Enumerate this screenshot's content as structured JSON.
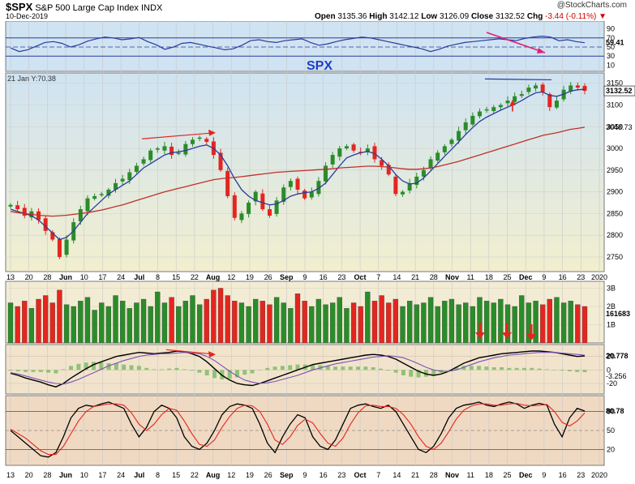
{
  "header": {
    "symbol": "$SPX",
    "name": "S&P 500 Large Cap Index",
    "exchange": "INDX",
    "date": "10-Dec-2019",
    "brand": "@StockCharts.com",
    "open_label": "Open",
    "open": "3135.36",
    "high_label": "High",
    "high": "3142.12",
    "low_label": "Low",
    "low": "3126.09",
    "close_label": "Close",
    "close": "3132.52",
    "chg_label": "Chg",
    "chg": "-3.44 (-0.11%)",
    "chg_arrow": "▼"
  },
  "colors": {
    "up": "#2a8c2a",
    "down": "#e3261f",
    "price_bg_top": "#cfe3f2",
    "price_bg_bottom": "#f2efcf",
    "sma_short": "#2a3c9c",
    "sma_long": "#c0302a",
    "annot": "#e0207a",
    "spx_text": "#1f3ec8"
  },
  "chart_data": [
    {
      "type": "line",
      "panel": "rsi",
      "yticks": [
        "90",
        "70",
        "50",
        "30",
        "10"
      ],
      "reference_lines": [
        70,
        30
      ],
      "last_value_label": "59.41",
      "values": [
        48,
        40,
        44,
        52,
        60,
        62,
        58,
        50,
        55,
        63,
        68,
        72,
        70,
        66,
        68,
        71,
        62,
        55,
        45,
        50,
        58,
        60,
        56,
        52,
        48,
        44,
        46,
        54,
        64,
        66,
        62,
        60,
        64,
        66,
        68,
        60,
        54,
        57,
        62,
        66,
        69,
        72,
        70,
        66,
        62,
        58,
        54,
        50,
        46,
        40,
        45,
        52,
        56,
        60,
        62,
        64,
        66,
        68,
        66,
        64,
        69,
        72,
        74,
        72,
        64,
        66,
        62,
        59.41
      ]
    },
    {
      "type": "candlestick",
      "panel": "price",
      "title_annotation": "SPX",
      "info_label": "21 Jan Y:70.38",
      "ylim": [
        2720,
        3170
      ],
      "yticks": [
        "3150",
        "3100",
        "3050",
        "3000",
        "2950",
        "2900",
        "2850",
        "2800",
        "2750"
      ],
      "last_close_label": "3132.52",
      "sma_label": "3048.73",
      "closes": [
        2870,
        2860,
        2845,
        2855,
        2835,
        2810,
        2790,
        2750,
        2790,
        2830,
        2860,
        2885,
        2890,
        2895,
        2905,
        2920,
        2930,
        2945,
        2960,
        2975,
        2995,
        3000,
        3005,
        2985,
        2990,
        3010,
        3020,
        3025,
        3015,
        2985,
        2950,
        2890,
        2840,
        2850,
        2875,
        2900,
        2860,
        2845,
        2880,
        2910,
        2925,
        2905,
        2885,
        2900,
        2925,
        2960,
        2985,
        3000,
        3005,
        2995,
        2990,
        3000,
        2975,
        2960,
        2940,
        2895,
        2900,
        2920,
        2935,
        2950,
        2975,
        2990,
        3005,
        3020,
        3040,
        3060,
        3075,
        3085,
        3090,
        3095,
        3100,
        3110,
        3120,
        3125,
        3140,
        3145,
        3130,
        3095,
        3110,
        3135,
        3145,
        3140,
        3132.52
      ],
      "series": [
        {
          "name": "SMA short",
          "values": [
            2860,
            2855,
            2850,
            2845,
            2835,
            2820,
            2805,
            2790,
            2795,
            2810,
            2830,
            2850,
            2865,
            2880,
            2895,
            2905,
            2915,
            2925,
            2940,
            2955,
            2965,
            2975,
            2985,
            2990,
            2992,
            2995,
            3000,
            3005,
            3008,
            3000,
            2985,
            2960,
            2930,
            2905,
            2890,
            2880,
            2875,
            2870,
            2872,
            2880,
            2890,
            2895,
            2898,
            2900,
            2908,
            2920,
            2940,
            2960,
            2978,
            2985,
            2990,
            2993,
            2988,
            2975,
            2960,
            2940,
            2925,
            2918,
            2920,
            2932,
            2948,
            2965,
            2982,
            2998,
            3015,
            3032,
            3048,
            3062,
            3072,
            3080,
            3088,
            3095,
            3102,
            3110,
            3120,
            3128,
            3130,
            3122,
            3120,
            3125,
            3132,
            3135,
            3136
          ]
        },
        {
          "name": "SMA long",
          "values": [
            2855,
            2852,
            2850,
            2848,
            2846,
            2845,
            2844,
            2845,
            2846,
            2848,
            2850,
            2852,
            2855,
            2858,
            2862,
            2866,
            2870,
            2875,
            2880,
            2885,
            2890,
            2895,
            2900,
            2904,
            2908,
            2912,
            2916,
            2920,
            2924,
            2928,
            2930,
            2932,
            2933,
            2935,
            2937,
            2939,
            2941,
            2943,
            2945,
            2946,
            2947,
            2948,
            2949,
            2950,
            2951,
            2952,
            2953,
            2955,
            2956,
            2957,
            2958,
            2959,
            2959,
            2958,
            2957,
            2955,
            2953,
            2952,
            2952,
            2953,
            2955,
            2958,
            2962,
            2966,
            2970,
            2975,
            2980,
            2985,
            2990,
            2995,
            3000,
            3005,
            3010,
            3015,
            3020,
            3025,
            3030,
            3033,
            3036,
            3040,
            3044,
            3046,
            3048.73
          ]
        }
      ]
    },
    {
      "type": "bar",
      "panel": "volume",
      "yticks": [
        "3B",
        "2B",
        "1B"
      ],
      "last_value_label": "161683",
      "values": [
        2.2,
        2.0,
        2.3,
        1.9,
        2.4,
        2.6,
        2.2,
        2.9,
        2.1,
        2.0,
        2.3,
        2.5,
        1.8,
        2.2,
        2.0,
        2.6,
        2.3,
        1.9,
        2.2,
        2.4,
        2.0,
        2.8,
        2.2,
        2.5,
        2.0,
        2.3,
        2.6,
        2.1,
        2.4,
        2.9,
        3.0,
        2.6,
        2.3,
        2.2,
        2.0,
        2.4,
        2.3,
        2.1,
        2.5,
        2.2,
        1.9,
        2.7,
        2.3,
        2.0,
        2.4,
        2.1,
        2.2,
        2.5,
        1.9,
        2.2,
        2.0,
        2.8,
        2.3,
        2.6,
        2.2,
        2.4,
        2.0,
        2.3,
        2.1,
        2.2,
        2.5,
        2.0,
        2.3,
        2.4,
        2.1,
        2.2,
        2.0,
        2.5,
        2.3,
        2.2,
        2.4,
        2.1,
        2.0,
        2.6,
        2.2,
        2.3,
        2.1,
        2.4,
        2.5,
        2.2,
        2.3,
        2.1,
        2.0
      ]
    },
    {
      "type": "line",
      "panel": "macd",
      "yticks": [
        "20",
        "0",
        "-20"
      ],
      "macd_label": "20.778",
      "hist_label": "-3.256",
      "series": [
        {
          "name": "MACD",
          "values": [
            -5,
            -8,
            -12,
            -15,
            -18,
            -22,
            -25,
            -20,
            -12,
            -5,
            2,
            8,
            12,
            16,
            20,
            22,
            24,
            26,
            25,
            24,
            25,
            26,
            28,
            27,
            24,
            20,
            12,
            2,
            -8,
            -15,
            -20,
            -22,
            -23,
            -20,
            -16,
            -12,
            -8,
            -4,
            0,
            4,
            8,
            10,
            12,
            14,
            16,
            18,
            20,
            22,
            23,
            22,
            20,
            16,
            10,
            4,
            -2,
            -6,
            -8,
            -6,
            -2,
            4,
            10,
            14,
            18,
            20,
            22,
            24,
            25,
            26,
            27,
            28,
            28,
            27,
            26,
            24,
            22,
            20,
            20.778
          ]
        },
        {
          "name": "Signal",
          "values": [
            -4,
            -6,
            -9,
            -12,
            -15,
            -18,
            -20,
            -21,
            -18,
            -14,
            -9,
            -4,
            1,
            6,
            10,
            14,
            17,
            20,
            22,
            23,
            24,
            24,
            25,
            26,
            25,
            24,
            20,
            14,
            6,
            -2,
            -9,
            -15,
            -18,
            -20,
            -19,
            -17,
            -14,
            -11,
            -8,
            -4,
            0,
            3,
            6,
            9,
            11,
            13,
            15,
            17,
            19,
            20,
            21,
            20,
            18,
            14,
            9,
            4,
            0,
            -2,
            -2,
            0,
            4,
            8,
            12,
            15,
            18,
            20,
            22,
            23,
            24,
            25,
            26,
            26,
            26,
            25,
            24,
            23,
            22
          ]
        }
      ],
      "histogram": [
        -1,
        -2,
        -3,
        -3,
        -3,
        -4,
        -5,
        1,
        6,
        9,
        11,
        12,
        11,
        10,
        10,
        8,
        7,
        6,
        3,
        1,
        1,
        2,
        3,
        1,
        -1,
        -4,
        -8,
        -12,
        -14,
        -13,
        -11,
        -7,
        -5,
        0,
        3,
        5,
        6,
        7,
        8,
        8,
        8,
        7,
        6,
        5,
        5,
        5,
        5,
        5,
        4,
        2,
        -1,
        -4,
        -8,
        -10,
        -11,
        -10,
        -8,
        -4,
        0,
        4,
        6,
        6,
        6,
        5,
        4,
        4,
        3,
        3,
        3,
        3,
        2,
        1,
        0,
        -1,
        -2,
        -3,
        -3.256
      ]
    },
    {
      "type": "line",
      "panel": "stochastic",
      "yticks": [
        "80",
        "50",
        "20"
      ],
      "last_value_label": "80.78",
      "series": [
        {
          "name": "%K",
          "values": [
            50,
            40,
            30,
            20,
            10,
            8,
            15,
            40,
            70,
            85,
            90,
            88,
            92,
            95,
            90,
            85,
            60,
            40,
            55,
            80,
            90,
            85,
            70,
            40,
            25,
            20,
            30,
            50,
            75,
            88,
            92,
            90,
            85,
            60,
            30,
            15,
            40,
            60,
            75,
            70,
            40,
            25,
            20,
            35,
            60,
            85,
            90,
            92,
            88,
            85,
            90,
            80,
            60,
            40,
            20,
            15,
            25,
            45,
            70,
            85,
            90,
            92,
            95,
            90,
            88,
            92,
            95,
            92,
            85,
            90,
            93,
            90,
            60,
            40,
            70,
            85,
            80.78
          ]
        },
        {
          "name": "%D",
          "values": [
            52,
            45,
            38,
            28,
            18,
            12,
            12,
            25,
            45,
            65,
            80,
            88,
            90,
            92,
            92,
            90,
            78,
            60,
            50,
            60,
            75,
            85,
            82,
            65,
            45,
            28,
            25,
            35,
            55,
            72,
            85,
            90,
            89,
            80,
            60,
            35,
            28,
            40,
            58,
            68,
            62,
            45,
            30,
            25,
            38,
            60,
            78,
            89,
            90,
            88,
            88,
            85,
            75,
            60,
            40,
            25,
            20,
            30,
            48,
            68,
            82,
            89,
            92,
            92,
            90,
            90,
            92,
            93,
            90,
            89,
            90,
            91,
            80,
            63,
            57,
            65,
            78
          ]
        }
      ]
    }
  ],
  "x_axis_labels": [
    "13",
    "20",
    "28",
    "Jun",
    "10",
    "17",
    "24",
    "Jul",
    "8",
    "15",
    "22",
    "Aug",
    "12",
    "19",
    "26",
    "Sep",
    "9",
    "16",
    "23",
    "Oct",
    "7",
    "14",
    "21",
    "28",
    "Nov",
    "11",
    "18",
    "25",
    "Dec",
    "9",
    "16",
    "23",
    "2020"
  ]
}
